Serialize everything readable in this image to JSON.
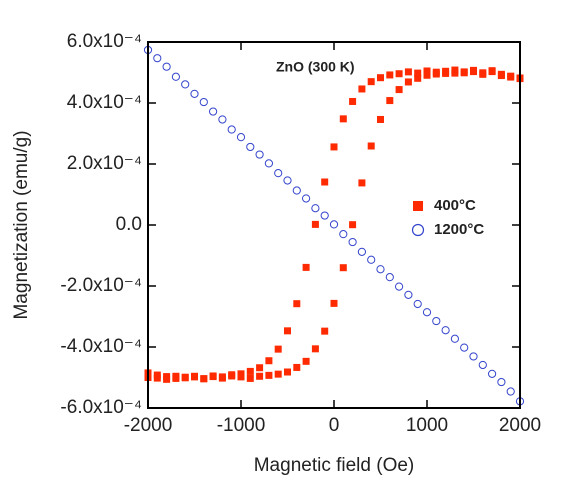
{
  "chart_data": {
    "type": "scatter",
    "annotation": "ZnO (300 K)",
    "xlabel": "Magnetic field (Oe)",
    "ylabel": "Magnetization (emu/g)",
    "xlim": [
      -2000,
      2000
    ],
    "ylim": [
      -0.0006,
      0.0006
    ],
    "xticks": [
      -2000,
      -1000,
      0,
      1000,
      2000
    ],
    "yticks": [
      {
        "value": -0.0006,
        "label": "-6.0x10⁻⁴"
      },
      {
        "value": -0.0004,
        "label": "-4.0x10⁻⁴"
      },
      {
        "value": -0.0002,
        "label": "-2.0x10⁻⁴"
      },
      {
        "value": 0,
        "label": "0.0"
      },
      {
        "value": 0.0002,
        "label": "2.0x10⁻⁴"
      },
      {
        "value": 0.0004,
        "label": "4.0x10⁻⁴"
      },
      {
        "value": 0.0006,
        "label": "6.0x10⁻⁴"
      }
    ],
    "legend": "right",
    "series": [
      {
        "name": "400°C",
        "color": "#ff2a00",
        "marker": "square",
        "x": [
          -2000,
          -1900,
          -1800,
          -1700,
          -1600,
          -1500,
          -1400,
          -1300,
          -1200,
          -1100,
          -1000,
          -900,
          -800,
          -700,
          -600,
          -500,
          -400,
          -300,
          -200,
          -100,
          0,
          100,
          200,
          300,
          400,
          500,
          600,
          700,
          800,
          900,
          1000,
          1100,
          1200,
          1300,
          1400,
          1500,
          1600,
          1700,
          1800,
          1900,
          2000,
          -2000,
          -1900,
          -1800,
          -1700,
          -1600,
          -1500,
          -1400,
          -1300,
          -1200,
          -1100,
          -1000,
          -900,
          -800,
          -700,
          -600,
          -500,
          -400,
          -300,
          -200,
          -100,
          0,
          100,
          200,
          300,
          400,
          500,
          600,
          700,
          800,
          900,
          1000,
          1100,
          1200,
          1300,
          1400,
          1500,
          1600,
          1700,
          1800,
          1900,
          2000
        ],
        "values": [
          -0.0005,
          -0.000502,
          -0.000497,
          -0.000503,
          -0.000499,
          -0.000496,
          -0.000504,
          -0.000495,
          -0.000498,
          -0.000491,
          -0.000488,
          -0.00048,
          -0.000468,
          -0.000445,
          -0.000407,
          -0.000347,
          -0.000258,
          -0.000139,
          2e-06,
          0.000141,
          0.000256,
          0.000348,
          0.000405,
          0.000446,
          0.00047,
          0.000483,
          0.000492,
          0.000496,
          0.000502,
          0.000498,
          0.000505,
          0.000501,
          0.000497,
          0.000508,
          0.000499,
          0.000503,
          0.000494,
          0.000506,
          0.00049,
          0.000485,
          0.00048,
          -0.000485,
          -0.000492,
          -0.000506,
          -0.000496,
          -0.000501,
          -0.000498,
          -0.000504,
          -0.000497,
          -0.000502,
          -0.000495,
          -0.000498,
          -0.000503,
          -0.000496,
          -0.000493,
          -0.000489,
          -0.000482,
          -0.000467,
          -0.000447,
          -0.000406,
          -0.000348,
          -0.000257,
          -0.00014,
          1e-06,
          0.000138,
          0.000259,
          0.000346,
          0.000408,
          0.000444,
          0.000469,
          0.000481,
          0.000491,
          0.000495,
          0.000504,
          0.000498,
          0.000502,
          0.000507,
          0.000499,
          0.000503,
          0.000494,
          0.000488,
          0.000482
        ]
      },
      {
        "name": "1200°C",
        "color": "#3344cc",
        "marker": "circle",
        "x": [
          -2000,
          -1900,
          -1800,
          -1700,
          -1600,
          -1500,
          -1400,
          -1300,
          -1200,
          -1100,
          -1000,
          -900,
          -800,
          -700,
          -600,
          -500,
          -400,
          -300,
          -200,
          -100,
          0,
          100,
          200,
          300,
          400,
          500,
          600,
          700,
          800,
          900,
          1000,
          1100,
          1200,
          1300,
          1400,
          1500,
          1600,
          1700,
          1800,
          1900,
          2000
        ],
        "values": [
          0.000574,
          0.000547,
          0.000519,
          0.000486,
          0.000461,
          0.00043,
          0.000403,
          0.000372,
          0.000346,
          0.000313,
          0.000288,
          0.000256,
          0.000231,
          0.000202,
          0.00017,
          0.000146,
          0.000113,
          8.7e-05,
          5.5e-05,
          3.1e-05,
          2e-06,
          -3e-05,
          -5.6e-05,
          -8.8e-05,
          -0.000114,
          -0.000145,
          -0.000171,
          -0.000202,
          -0.000229,
          -0.000259,
          -0.000286,
          -0.000315,
          -0.000345,
          -0.000373,
          -0.000402,
          -0.000431,
          -0.000459,
          -0.000488,
          -0.000515,
          -0.000546,
          -0.000578
        ]
      }
    ]
  }
}
